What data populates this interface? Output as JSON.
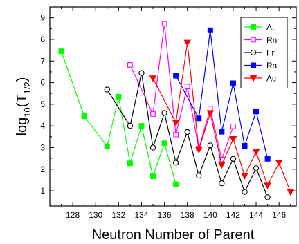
{
  "chart_data": {
    "type": "line",
    "xlabel": "Neutron Number of Parent",
    "ylabel": "log10(T1/2)",
    "xlim": [
      126,
      147.5
    ],
    "ylim": [
      0.3,
      9.5
    ],
    "x_ticks": [
      128,
      130,
      132,
      134,
      136,
      138,
      140,
      142,
      144,
      146
    ],
    "y_ticks": [
      1,
      2,
      3,
      4,
      5,
      6,
      7,
      8,
      9
    ],
    "legend_position": "top-right",
    "series": [
      {
        "name": "At",
        "color": "#00ff00",
        "marker": "filled-square",
        "x": [
          127,
          129,
          131,
          132,
          133,
          134,
          135,
          136,
          137
        ],
        "y": [
          7.45,
          4.45,
          3.05,
          5.35,
          2.27,
          4.0,
          1.67,
          3.2,
          1.3
        ]
      },
      {
        "name": "Rn",
        "color": "#ff00ff",
        "marker": "open-square",
        "x": [
          133,
          135,
          136,
          137,
          138,
          139,
          140,
          141,
          142
        ],
        "y": [
          6.82,
          4.55,
          8.72,
          3.6,
          5.82,
          2.95,
          4.8,
          2.45,
          3.98
        ]
      },
      {
        "name": "Fr",
        "color": "#000000",
        "marker": "open-circle",
        "x": [
          131,
          133,
          134,
          135,
          136,
          137,
          138,
          139,
          140,
          141,
          142,
          143,
          144,
          145
        ],
        "y": [
          5.68,
          4.0,
          6.45,
          3.0,
          4.6,
          2.3,
          3.72,
          1.7,
          3.1,
          1.35,
          2.48,
          0.95,
          2.05,
          0.7
        ]
      },
      {
        "name": "Ra",
        "color": "#0000ff",
        "marker": "filled-square",
        "x": [
          137,
          139,
          140,
          141,
          142,
          143,
          144,
          145
        ],
        "y": [
          6.32,
          4.35,
          8.42,
          3.73,
          5.97,
          3.08,
          4.67,
          2.48
        ]
      },
      {
        "name": "Ac",
        "color": "#ff0000",
        "marker": "filled-triangle-down",
        "x": [
          135,
          137,
          138,
          139,
          140,
          141,
          142,
          143,
          144,
          145,
          146,
          147
        ],
        "y": [
          6.2,
          4.15,
          7.85,
          2.9,
          4.6,
          2.2,
          3.4,
          1.7,
          2.8,
          1.25,
          2.3,
          0.95
        ]
      }
    ]
  }
}
